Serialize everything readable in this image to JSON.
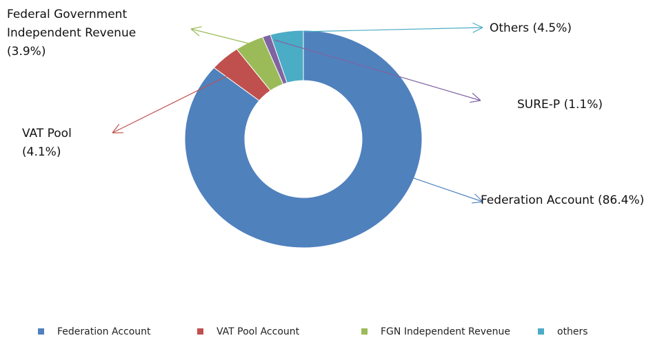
{
  "chart_data": {
    "type": "donut",
    "categories": [
      "Federation Account",
      "VAT Pool Account",
      "FGN Independent Revenue",
      null,
      "others"
    ],
    "values": [
      86.4,
      4.1,
      3.9,
      1.1,
      4.5
    ],
    "value_labels": [
      "Federation Account (86.4%)",
      "VAT Pool (4.1%)",
      "Federal Government Independent Revenue (3.9%)",
      "SURE-P (1.1%)",
      "Others (4.5%)"
    ],
    "colors": [
      "#4f81bd",
      "#c0504d",
      "#9bbb59",
      "#8064a2",
      "#4bacc6"
    ]
  }
}
